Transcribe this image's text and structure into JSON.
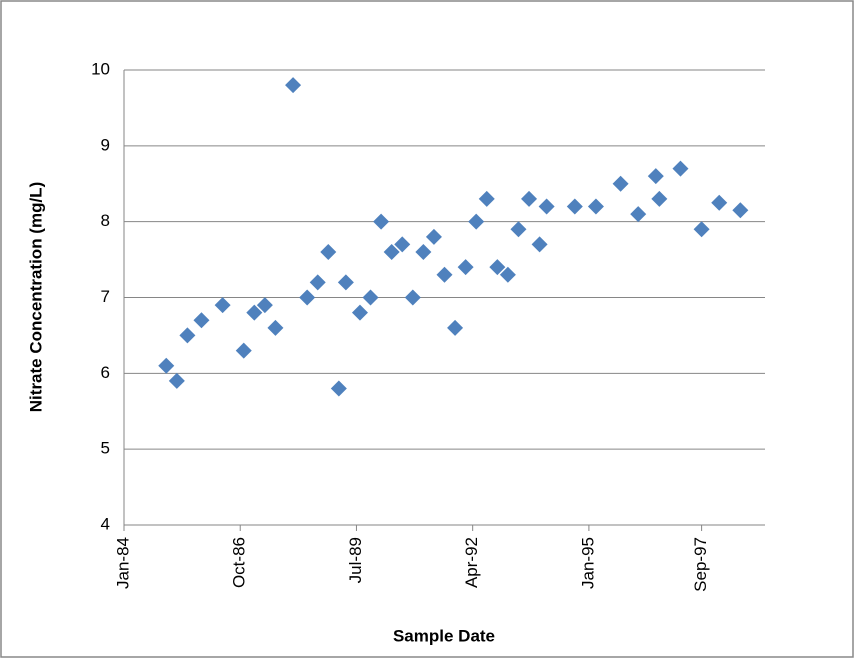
{
  "chart_data": {
    "type": "scatter",
    "x_label": "Sample Date",
    "y_label": "Nitrate Concentration (mg/L)",
    "color": "#4f81bd",
    "grid": true,
    "x": [
      "1985-01",
      "1985-04",
      "1985-07",
      "1985-11",
      "1986-05",
      "1986-11",
      "1987-02",
      "1987-05",
      "1987-08",
      "1988-01",
      "1988-05",
      "1988-08",
      "1988-11",
      "1989-02",
      "1989-04",
      "1989-08",
      "1989-11",
      "1990-02",
      "1990-05",
      "1990-08",
      "1990-11",
      "1991-02",
      "1991-05",
      "1991-08",
      "1991-11",
      "1992-02",
      "1992-05",
      "1992-08",
      "1992-11",
      "1993-02",
      "1993-05",
      "1993-08",
      "1993-11",
      "1994-01",
      "1994-09",
      "1995-03",
      "1995-10",
      "1996-03",
      "1996-08",
      "1996-09",
      "1997-03",
      "1997-09",
      "1998-02",
      "1998-08"
    ],
    "values": [
      6.1,
      5.9,
      6.5,
      6.7,
      6.9,
      6.3,
      6.8,
      6.9,
      6.6,
      9.8,
      7.0,
      7.2,
      7.6,
      5.8,
      7.2,
      6.8,
      7.0,
      8.0,
      7.6,
      7.7,
      7.0,
      7.6,
      7.8,
      7.3,
      6.6,
      7.4,
      8.0,
      8.3,
      7.4,
      7.3,
      7.9,
      8.3,
      7.7,
      8.2,
      8.2,
      8.2,
      8.5,
      8.1,
      8.6,
      8.3,
      8.7,
      7.9,
      8.25,
      8.15
    ],
    "xlim": [
      "1984-01",
      "1999-03"
    ],
    "xticks": [
      {
        "value": "1984-01",
        "label": "Jan-84"
      },
      {
        "value": "1986-10",
        "label": "Oct-86"
      },
      {
        "value": "1989-07",
        "label": "Jul-89"
      },
      {
        "value": "1992-04",
        "label": "Apr-92"
      },
      {
        "value": "1995-01",
        "label": "Jan-95"
      },
      {
        "value": "1997-09",
        "label": "Sep-97"
      }
    ],
    "ylim": [
      4,
      10
    ],
    "yticks": [
      4,
      5,
      6,
      7,
      8,
      9,
      10
    ]
  }
}
